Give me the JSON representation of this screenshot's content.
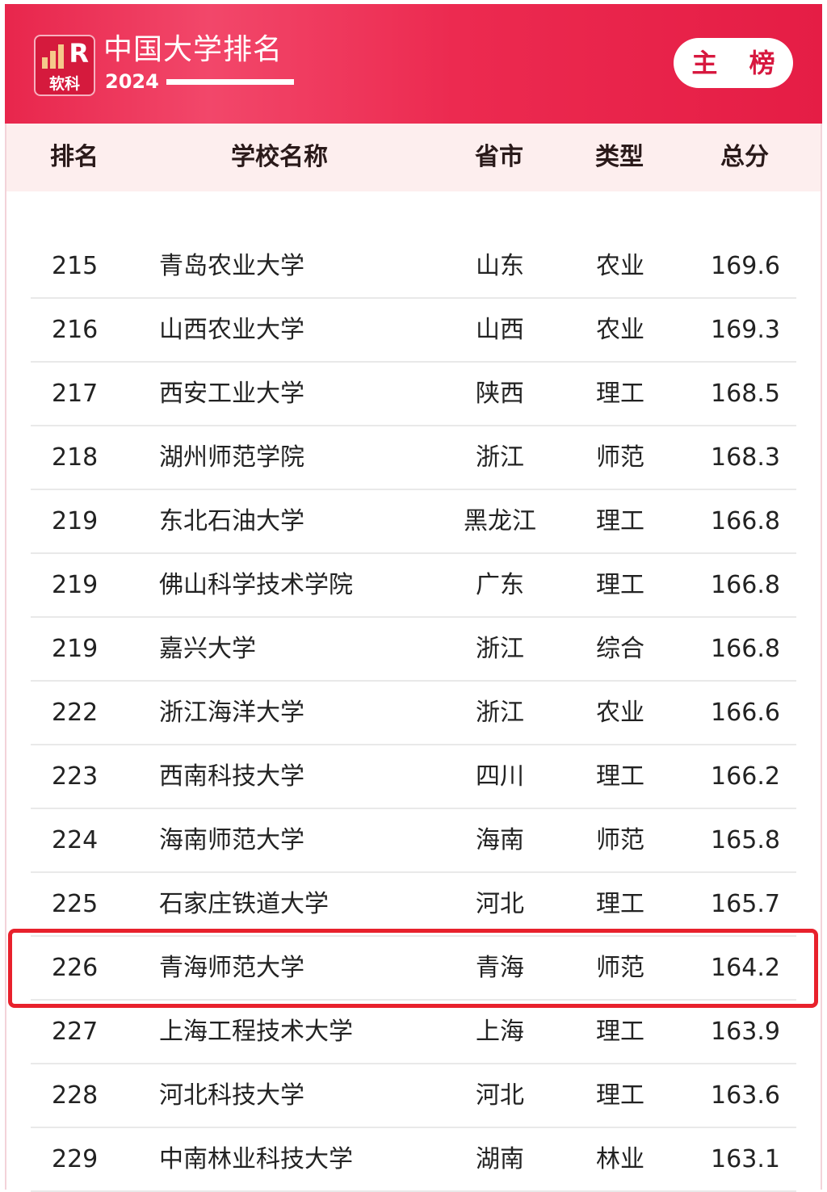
{
  "header": {
    "logo_text": "软科",
    "logo_letter": "R",
    "title": "中国大学排名",
    "year": "2024",
    "badge": "主 榜"
  },
  "colors": {
    "brand": "#e8264c",
    "highlight_border": "#e8212c"
  },
  "columns": [
    "排名",
    "学校名称",
    "省市",
    "类型",
    "总分"
  ],
  "rows": [
    {
      "rank": "215",
      "name": "青岛农业大学",
      "province": "山东",
      "type": "农业",
      "score": "169.6"
    },
    {
      "rank": "216",
      "name": "山西农业大学",
      "province": "山西",
      "type": "农业",
      "score": "169.3"
    },
    {
      "rank": "217",
      "name": "西安工业大学",
      "province": "陕西",
      "type": "理工",
      "score": "168.5"
    },
    {
      "rank": "218",
      "name": "湖州师范学院",
      "province": "浙江",
      "type": "师范",
      "score": "168.3"
    },
    {
      "rank": "219",
      "name": "东北石油大学",
      "province": "黑龙江",
      "type": "理工",
      "score": "166.8"
    },
    {
      "rank": "219",
      "name": "佛山科学技术学院",
      "province": "广东",
      "type": "理工",
      "score": "166.8"
    },
    {
      "rank": "219",
      "name": "嘉兴大学",
      "province": "浙江",
      "type": "综合",
      "score": "166.8"
    },
    {
      "rank": "222",
      "name": "浙江海洋大学",
      "province": "浙江",
      "type": "农业",
      "score": "166.6"
    },
    {
      "rank": "223",
      "name": "西南科技大学",
      "province": "四川",
      "type": "理工",
      "score": "166.2"
    },
    {
      "rank": "224",
      "name": "海南师范大学",
      "province": "海南",
      "type": "师范",
      "score": "165.8"
    },
    {
      "rank": "225",
      "name": "石家庄铁道大学",
      "province": "河北",
      "type": "理工",
      "score": "165.7"
    },
    {
      "rank": "226",
      "name": "青海师范大学",
      "province": "青海",
      "type": "师范",
      "score": "164.2",
      "highlighted": true
    },
    {
      "rank": "227",
      "name": "上海工程技术大学",
      "province": "上海",
      "type": "理工",
      "score": "163.9"
    },
    {
      "rank": "228",
      "name": "河北科技大学",
      "province": "河北",
      "type": "理工",
      "score": "163.6"
    },
    {
      "rank": "229",
      "name": "中南林业科技大学",
      "province": "湖南",
      "type": "林业",
      "score": "163.1"
    }
  ]
}
